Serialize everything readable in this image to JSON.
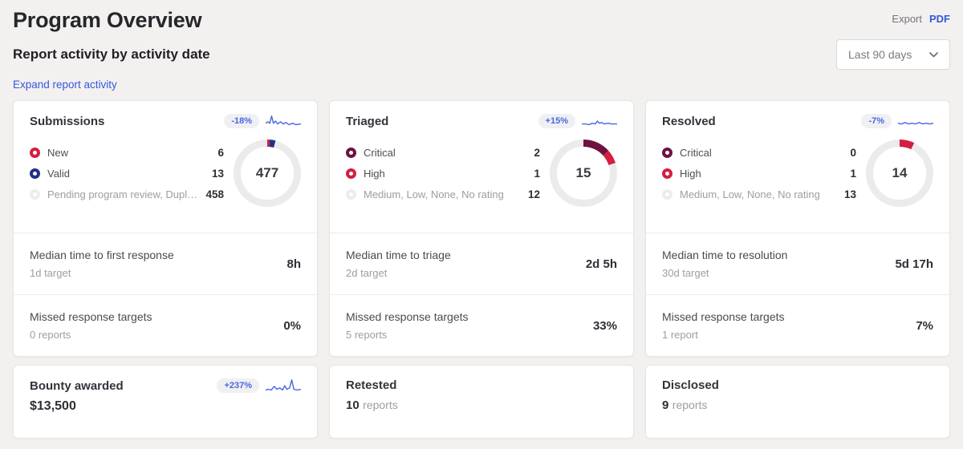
{
  "header": {
    "title": "Program Overview",
    "export_label": "Export",
    "export_pdf_label": "PDF"
  },
  "controls": {
    "section_title": "Report activity by activity date",
    "date_range_value": "Last 90 days",
    "expand_link": "Expand report activity"
  },
  "colors": {
    "accent_blue": "#4a66e0",
    "ring_gray": "#ebebeb",
    "red": "#d31f3f",
    "navy": "#232f8c",
    "maroon": "#6e1240",
    "muted_dot": "#ececec"
  },
  "cards": [
    {
      "title": "Submissions",
      "change": "-18%",
      "rows": [
        {
          "label": "New",
          "value": "6",
          "color": "#d31f3f",
          "muted": false
        },
        {
          "label": "Valid",
          "value": "13",
          "color": "#232f8c",
          "muted": false
        },
        {
          "label": "Pending program review, Duplic…",
          "value": "458",
          "color": "#ececec",
          "muted": true
        }
      ],
      "donut": {
        "center_label": "477",
        "total": 477,
        "segments": [
          {
            "name": "New",
            "value": 6,
            "color": "#d31f3f"
          },
          {
            "name": "Valid",
            "value": 13,
            "color": "#232f8c"
          }
        ]
      },
      "metrics": [
        {
          "label": "Median time to first response",
          "sub": "1d target",
          "value": "8h"
        },
        {
          "label": "Missed response targets",
          "sub": "0 reports",
          "value": "0%"
        }
      ],
      "spark": [
        [
          0,
          13
        ],
        [
          7,
          11
        ],
        [
          12,
          13
        ],
        [
          17,
          3
        ],
        [
          22,
          13
        ],
        [
          28,
          10
        ],
        [
          34,
          14
        ],
        [
          42,
          11
        ],
        [
          50,
          14
        ],
        [
          58,
          12
        ],
        [
          66,
          15
        ],
        [
          76,
          13
        ],
        [
          86,
          15
        ],
        [
          100,
          14
        ]
      ]
    },
    {
      "title": "Triaged",
      "change": "+15%",
      "rows": [
        {
          "label": "Critical",
          "value": "2",
          "color": "#6e1240",
          "muted": false
        },
        {
          "label": "High",
          "value": "1",
          "color": "#d31f3f",
          "muted": false
        },
        {
          "label": "Medium, Low, None, No rating",
          "value": "12",
          "color": "#ececec",
          "muted": true
        }
      ],
      "donut": {
        "center_label": "15",
        "total": 15,
        "segments": [
          {
            "name": "Critical",
            "value": 2,
            "color": "#6e1240"
          },
          {
            "name": "High",
            "value": 1,
            "color": "#d31f3f"
          }
        ]
      },
      "metrics": [
        {
          "label": "Median time to triage",
          "sub": "2d target",
          "value": "2d 5h"
        },
        {
          "label": "Missed response targets",
          "sub": "5 reports",
          "value": "33%"
        }
      ],
      "spark": [
        [
          0,
          14
        ],
        [
          10,
          14
        ],
        [
          20,
          15
        ],
        [
          30,
          13
        ],
        [
          38,
          14
        ],
        [
          44,
          10
        ],
        [
          50,
          13
        ],
        [
          56,
          12
        ],
        [
          64,
          14
        ],
        [
          74,
          13
        ],
        [
          84,
          14
        ],
        [
          100,
          14
        ]
      ]
    },
    {
      "title": "Resolved",
      "change": "-7%",
      "rows": [
        {
          "label": "Critical",
          "value": "0",
          "color": "#6e1240",
          "muted": false
        },
        {
          "label": "High",
          "value": "1",
          "color": "#d31f3f",
          "muted": false
        },
        {
          "label": "Medium, Low, None, No rating",
          "value": "13",
          "color": "#ececec",
          "muted": true
        }
      ],
      "donut": {
        "center_label": "14",
        "total": 14,
        "segments": [
          {
            "name": "Critical",
            "value": 0,
            "color": "#6e1240"
          },
          {
            "name": "High",
            "value": 1,
            "color": "#d31f3f"
          }
        ]
      },
      "metrics": [
        {
          "label": "Median time to resolution",
          "sub": "30d target",
          "value": "5d 17h"
        },
        {
          "label": "Missed response targets",
          "sub": "1 report",
          "value": "7%"
        }
      ],
      "spark": [
        [
          0,
          13
        ],
        [
          10,
          14
        ],
        [
          20,
          12
        ],
        [
          30,
          14
        ],
        [
          40,
          13
        ],
        [
          50,
          14
        ],
        [
          60,
          12
        ],
        [
          70,
          14
        ],
        [
          80,
          13
        ],
        [
          90,
          14
        ],
        [
          100,
          13
        ]
      ]
    }
  ],
  "bottom_cards": [
    {
      "title": "Bounty awarded",
      "change": "+237%",
      "value": "$13,500",
      "spark": [
        [
          0,
          16
        ],
        [
          8,
          15
        ],
        [
          16,
          16
        ],
        [
          24,
          11
        ],
        [
          32,
          15
        ],
        [
          40,
          13
        ],
        [
          48,
          16
        ],
        [
          54,
          10
        ],
        [
          60,
          15
        ],
        [
          68,
          13
        ],
        [
          74,
          2
        ],
        [
          80,
          15
        ],
        [
          90,
          16
        ],
        [
          100,
          15
        ]
      ]
    },
    {
      "title": "Retested",
      "count": "10",
      "unit": "reports"
    },
    {
      "title": "Disclosed",
      "count": "9",
      "unit": "reports"
    }
  ]
}
